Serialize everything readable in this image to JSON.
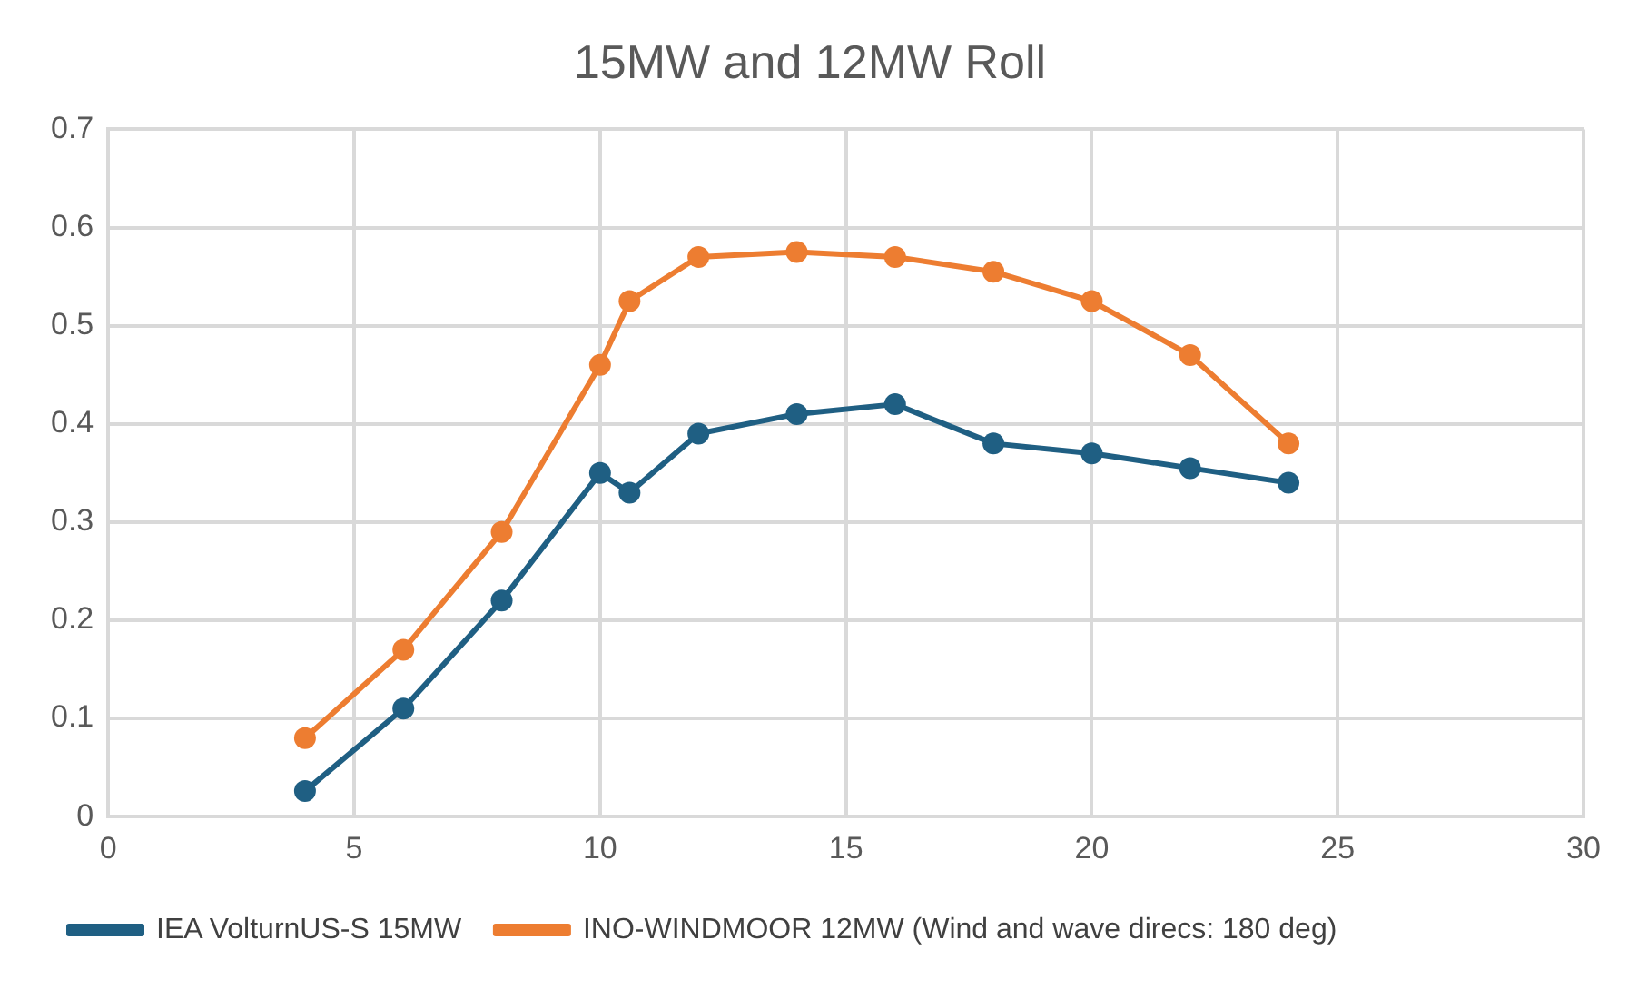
{
  "chart_data": {
    "type": "line",
    "title": "15MW and 12MW Roll",
    "x": [
      4,
      6,
      8,
      10,
      10.6,
      12,
      14,
      16,
      18,
      20,
      22,
      24
    ],
    "series": [
      {
        "name": "IEA VolturnUS-S 15MW",
        "color": "#1f5f83",
        "values": [
          0.026,
          0.11,
          0.22,
          0.35,
          0.33,
          0.39,
          0.41,
          0.42,
          0.38,
          0.37,
          0.355,
          0.34
        ]
      },
      {
        "name": "INO-WINDMOOR 12MW (Wind and wave direcs: 180 deg)",
        "color": "#ed7d31",
        "values": [
          0.08,
          0.17,
          0.29,
          0.46,
          0.525,
          0.57,
          0.575,
          0.57,
          0.555,
          0.525,
          0.47,
          0.38
        ]
      }
    ],
    "xlim": [
      0,
      30
    ],
    "xticks": [
      0,
      5,
      10,
      15,
      20,
      25,
      30
    ],
    "ylim": [
      0,
      0.7
    ],
    "yticks": [
      0,
      0.1,
      0.2,
      0.3,
      0.4,
      0.5,
      0.6,
      0.7
    ],
    "grid": true,
    "legend": "bottom",
    "marker": "circle",
    "line_style": "solid"
  }
}
